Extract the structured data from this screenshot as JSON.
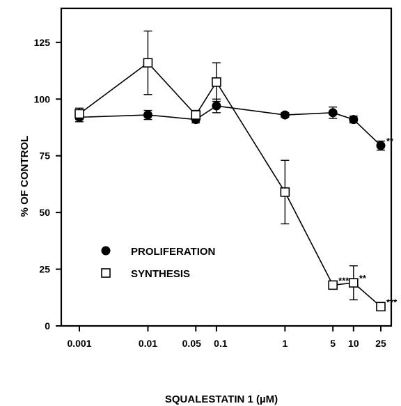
{
  "chart_data": {
    "type": "line",
    "xlabel": "SQUALESTATIN 1 (µM)",
    "ylabel": "% OF CONTROL",
    "x_scale": "log",
    "ylim": [
      0,
      140
    ],
    "categories": [
      "0.001",
      "0.01",
      "0.05",
      "0.1",
      "1",
      "5",
      "10",
      "25"
    ],
    "x": [
      0.001,
      0.01,
      0.05,
      0.1,
      1,
      5,
      10,
      25
    ],
    "x_tick_labels": [
      {
        "value": 0.001,
        "label": "0.001"
      },
      {
        "value": 0.01,
        "label": "0.01"
      },
      {
        "value": 0.05,
        "label": "0.05"
      },
      {
        "value": 0.1,
        "label": "0.1"
      },
      {
        "value": 1,
        "label": "1"
      },
      {
        "value": 5,
        "label": "5"
      },
      {
        "value": 10,
        "label": "10"
      },
      {
        "value": 25,
        "label": "25"
      }
    ],
    "y_ticks": [
      0,
      25,
      50,
      75,
      100,
      125
    ],
    "grid": false,
    "legend_position": "lower-left",
    "series": [
      {
        "name": "PROLIFERATION",
        "marker": "filled-circle",
        "values": [
          92,
          93,
          91,
          97,
          93,
          94,
          91,
          79.5
        ],
        "errors": [
          2,
          2,
          1.5,
          3,
          1,
          2.5,
          1.5,
          2
        ],
        "annotations": [
          "",
          "",
          "",
          "",
          "",
          "",
          "",
          "**"
        ]
      },
      {
        "name": "SYNTHESIS",
        "marker": "open-square",
        "values": [
          93.5,
          116,
          93,
          107.5,
          59,
          18,
          19,
          8.5
        ],
        "errors": [
          2.5,
          14,
          2,
          8.5,
          14,
          1.5,
          7.5,
          1
        ],
        "annotations": [
          "",
          "",
          "",
          "",
          "",
          "***",
          "**",
          "***"
        ]
      }
    ]
  }
}
